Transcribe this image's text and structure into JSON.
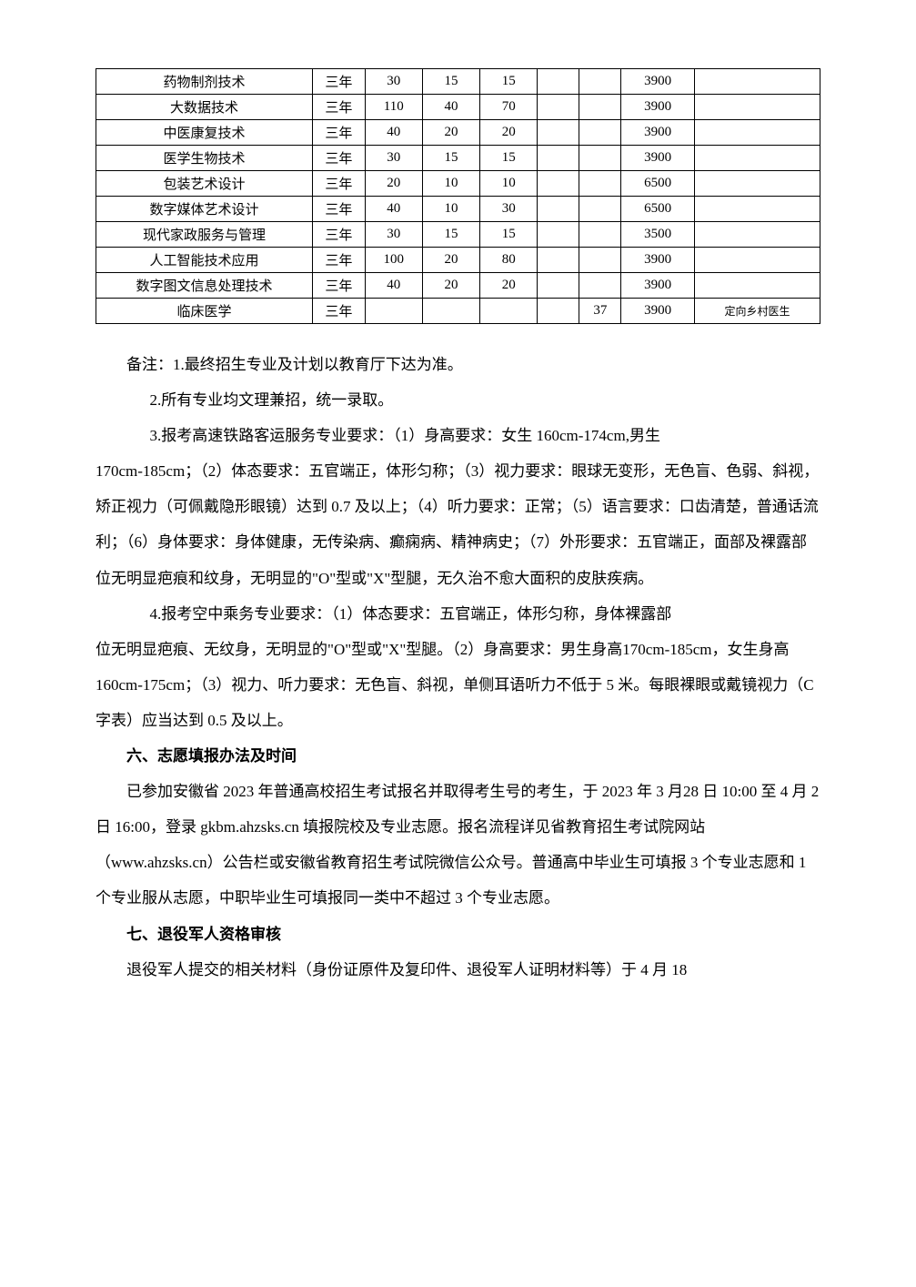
{
  "table": {
    "rows": [
      {
        "major": "药物制剂技术",
        "duration": "三年",
        "n1": "30",
        "n2": "15",
        "n3": "15",
        "n4": "",
        "n5": "",
        "fee": "3900",
        "note": ""
      },
      {
        "major": "大数据技术",
        "duration": "三年",
        "n1": "110",
        "n2": "40",
        "n3": "70",
        "n4": "",
        "n5": "",
        "fee": "3900",
        "note": ""
      },
      {
        "major": "中医康复技术",
        "duration": "三年",
        "n1": "40",
        "n2": "20",
        "n3": "20",
        "n4": "",
        "n5": "",
        "fee": "3900",
        "note": ""
      },
      {
        "major": "医学生物技术",
        "duration": "三年",
        "n1": "30",
        "n2": "15",
        "n3": "15",
        "n4": "",
        "n5": "",
        "fee": "3900",
        "note": ""
      },
      {
        "major": "包装艺术设计",
        "duration": "三年",
        "n1": "20",
        "n2": "10",
        "n3": "10",
        "n4": "",
        "n5": "",
        "fee": "6500",
        "note": ""
      },
      {
        "major": "数字媒体艺术设计",
        "duration": "三年",
        "n1": "40",
        "n2": "10",
        "n3": "30",
        "n4": "",
        "n5": "",
        "fee": "6500",
        "note": ""
      },
      {
        "major": "现代家政服务与管理",
        "duration": "三年",
        "n1": "30",
        "n2": "15",
        "n3": "15",
        "n4": "",
        "n5": "",
        "fee": "3500",
        "note": ""
      },
      {
        "major": "人工智能技术应用",
        "duration": "三年",
        "n1": "100",
        "n2": "20",
        "n3": "80",
        "n4": "",
        "n5": "",
        "fee": "3900",
        "note": ""
      },
      {
        "major": "数字图文信息处理技术",
        "duration": "三年",
        "n1": "40",
        "n2": "20",
        "n3": "20",
        "n4": "",
        "n5": "",
        "fee": "3900",
        "note": ""
      },
      {
        "major": "临床医学",
        "duration": "三年",
        "n1": "",
        "n2": "",
        "n3": "",
        "n4": "",
        "n5": "37",
        "fee": "3900",
        "note": "定向乡村医生"
      }
    ]
  },
  "notes": {
    "intro": "备注：1.最终招生专业及计划以教育厅下达为准。",
    "note2": "2.所有专业均文理兼招，统一录取。",
    "note3_line1": "3.报考高速铁路客运服务专业要求：（1）身高要求：女生 160cm-174cm,男生",
    "note3_line2": "170cm-185cm；（2）体态要求：五官端正，体形匀称；（3）视力要求：眼球无变形，无色盲、色弱、斜视，矫正视力（可佩戴隐形眼镜）达到 0.7 及以上；（4）听力要求：正常；（5）语言要求：口齿清楚，普通话流利；（6）身体要求：身体健康，无传染病、癫痫病、精神病史；（7）外形要求：五官端正，面部及裸露部位无明显疤痕和纹身，无明显的\"O\"型或\"X\"型腿，无久治不愈大面积的皮肤疾病。",
    "note4_line1": "4.报考空中乘务专业要求：（1）体态要求：五官端正，体形匀称，身体裸露部",
    "note4_line2": "位无明显疤痕、无纹身，无明显的\"O\"型或\"X\"型腿。（2）身高要求：男生身高170cm-185cm，女生身高 160cm-175cm；（3）视力、听力要求：无色盲、斜视，单侧耳语听力不低于 5 米。每眼裸眼或戴镜视力（C 字表）应当达到 0.5 及以上。"
  },
  "section6": {
    "heading": "六、志愿填报办法及时间",
    "body": "已参加安徽省 2023 年普通高校招生考试报名并取得考生号的考生，于 2023 年 3 月28 日 10:00 至 4 月 2 日 16:00，登录 gkbm.ahzsks.cn 填报院校及专业志愿。报名流程详见省教育招生考试院网站（www.ahzsks.cn）公告栏或安徽省教育招生考试院微信公众号。普通高中毕业生可填报 3 个专业志愿和 1 个专业服从志愿，中职毕业生可填报同一类中不超过 3 个专业志愿。"
  },
  "section7": {
    "heading": "七、退役军人资格审核",
    "body": "退役军人提交的相关材料（身份证原件及复印件、退役军人证明材料等）于 4 月 18"
  }
}
